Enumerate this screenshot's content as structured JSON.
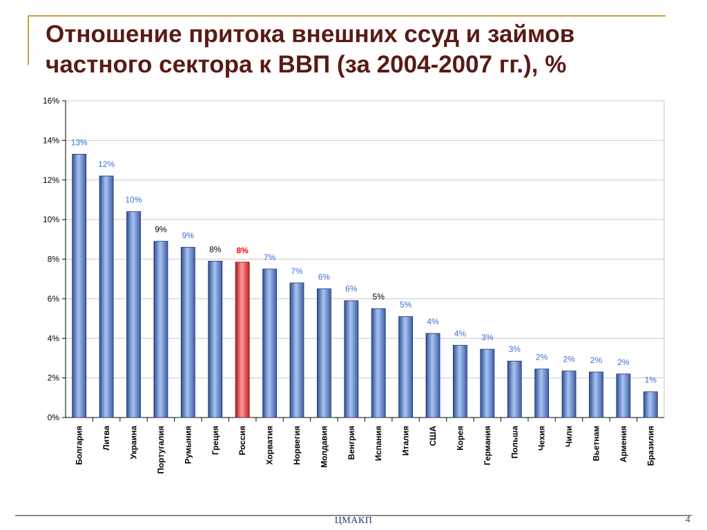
{
  "slide": {
    "title": "Отношение притока внешних ссуд и займов частного сектора к ВВП (за 2004-2007 гг.), %",
    "footer": "ЦМАКП",
    "page_number": "4"
  },
  "colors": {
    "bar_default": "#6d8fd0",
    "bar_highlight": "#e8383a",
    "label_blue": "#3a6fd8",
    "label_black": "#000000",
    "label_red": "#ff0000"
  },
  "chart_data": {
    "type": "bar",
    "title": "",
    "xlabel": "",
    "ylabel": "",
    "ylim": [
      0,
      16
    ],
    "y_ticks": [
      "0%",
      "2%",
      "4%",
      "6%",
      "8%",
      "10%",
      "12%",
      "14%",
      "16%"
    ],
    "grid": true,
    "categories": [
      "Болгария",
      "Литва",
      "Украина",
      "Португалия",
      "Румыния",
      "Греция",
      "Россия",
      "Хорватия",
      "Норвегия",
      "Молдавия",
      "Венгрия",
      "Испания",
      "Италия",
      "США",
      "Корея",
      "Германия",
      "Польша",
      "Чехия",
      "Чили",
      "Вьетнам",
      "Армения",
      "Бразилия"
    ],
    "values": [
      13.3,
      12.2,
      10.4,
      8.9,
      8.6,
      7.9,
      7.85,
      7.5,
      6.8,
      6.5,
      5.9,
      5.5,
      5.1,
      4.25,
      3.65,
      3.45,
      2.85,
      2.45,
      2.35,
      2.3,
      2.2,
      1.3
    ],
    "data_labels": [
      "13%",
      "12%",
      "10%",
      "9%",
      "9%",
      "8%",
      "8%",
      "7%",
      "7%",
      "6%",
      "6%",
      "5%",
      "5%",
      "4%",
      "4%",
      "3%",
      "3%",
      "2%",
      "2%",
      "2%",
      "2%",
      "1%"
    ],
    "label_colors": [
      "blue",
      "blue",
      "blue",
      "black",
      "blue",
      "black",
      "red",
      "blue",
      "blue",
      "blue",
      "blue",
      "black",
      "blue",
      "blue",
      "blue",
      "blue",
      "blue",
      "blue",
      "blue",
      "blue",
      "blue",
      "blue"
    ],
    "highlight": [
      "Россия"
    ]
  }
}
